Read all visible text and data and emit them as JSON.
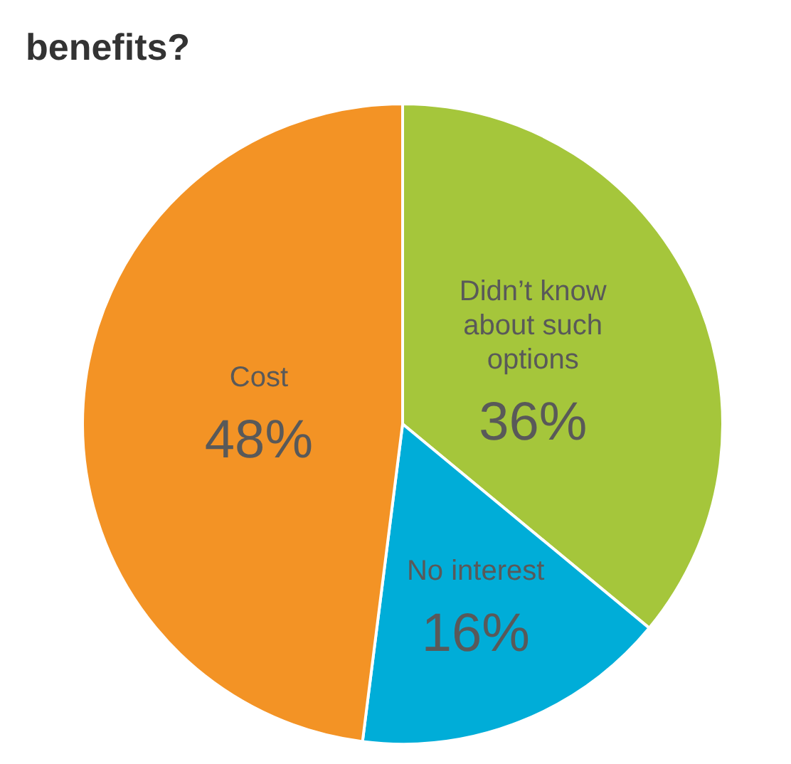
{
  "chart_data": {
    "type": "pie",
    "title": "benefits?",
    "categories": [
      "Didn’t know about such options",
      "No interest",
      "Cost"
    ],
    "values": [
      36,
      16,
      48
    ],
    "colors": [
      "#a5c63b",
      "#00add8",
      "#f39325"
    ],
    "value_labels": [
      "36%",
      "16%",
      "48%"
    ]
  }
}
